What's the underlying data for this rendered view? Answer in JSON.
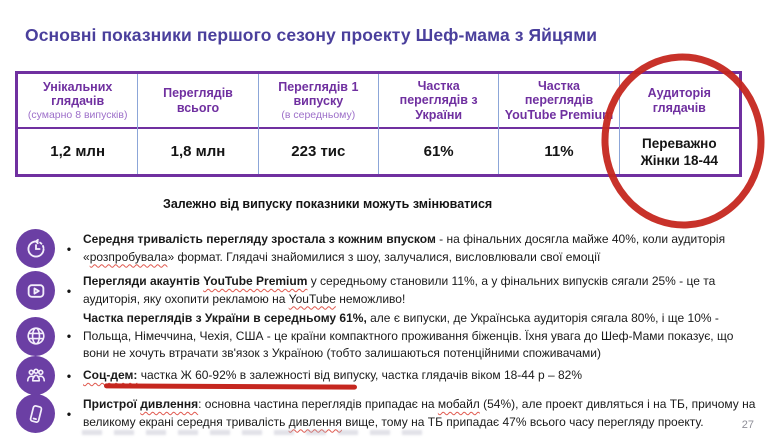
{
  "slide": {
    "title": "Основні показники першого сезону проекту Шеф-мама з Яйцями",
    "note": "Залежно від випуску показники можуть змінюватися",
    "page_number": "27"
  },
  "table": {
    "columns": [
      {
        "header": "Унікальних глядачів",
        "subheader": "(сумарно 8 випусків)",
        "value": "1,2 млн"
      },
      {
        "header": "Переглядів всього",
        "subheader": "",
        "value": "1,8 млн"
      },
      {
        "header": "Переглядів 1 випуску",
        "subheader": "(в середньому)",
        "value": "223 тис"
      },
      {
        "header": "Частка переглядів з України",
        "subheader": "",
        "value": "61%"
      },
      {
        "header": "Частка переглядів YouTube Premium",
        "subheader": "",
        "value": "11%"
      },
      {
        "header": "Аудиторія глядачів",
        "subheader": "",
        "value": "Переважно Жінки 18-44"
      }
    ]
  },
  "bullets": [
    {
      "icon": "clock-icon",
      "segments": [
        {
          "t": "Середня тривалість перегляду зростала з кожним впуском",
          "b": true
        },
        {
          "t": " - на фінальних досягла майже 40%, коли аудиторія «",
          "b": false
        },
        {
          "t": "розпробувала",
          "b": false,
          "w": true
        },
        {
          "t": "» формат. Глядачі знайомилися з шоу, залучалися, висловлювали свої емоції",
          "b": false
        }
      ]
    },
    {
      "icon": "play-icon",
      "segments": [
        {
          "t": "Перегляди акаунтів ",
          "b": true
        },
        {
          "t": "YouTube Premium",
          "b": true,
          "w": true
        },
        {
          "t": " у середньому становили 11%, а у фінальних випусків сягали 25% - це та аудиторія, яку охопити рекламою на ",
          "b": false
        },
        {
          "t": "YouTube",
          "b": false,
          "w": true
        },
        {
          "t": " неможливо!",
          "b": false
        }
      ]
    },
    {
      "icon": "globe-icon",
      "segments": [
        {
          "t": "Частка переглядів з України в середньому 61%,",
          "b": true
        },
        {
          "t": " але є випуски, де Українська аудиторія сягала 80%, і ще 10% - Польща, Німеччина, Чехія, США  - це країни компактного проживання біженців. Їхня увага до Шеф-Мами показує, що вони не хочуть втрачати зв'язок з Україною (тобто залишаються потенційними споживачами)",
          "b": false
        }
      ]
    },
    {
      "icon": "people-icon",
      "segments": [
        {
          "t": "Соц-дем:",
          "b": true,
          "w": true
        },
        {
          "t": " частка Ж 60-92% в залежності від випуску, частка глядачів віком 18-44 р – 82%",
          "b": false
        }
      ]
    },
    {
      "icon": "phone-icon",
      "segments": [
        {
          "t": "Пристрої ",
          "b": true
        },
        {
          "t": "дивлення",
          "b": true,
          "w": true
        },
        {
          "t": ": основна частина переглядів припадає на ",
          "b": false
        },
        {
          "t": "мобайл",
          "b": false,
          "w": true
        },
        {
          "t": " (54%), але проект дивляться і на ТБ, причому на великому екрані середня тривалість ",
          "b": false
        },
        {
          "t": "дивлення",
          "b": false,
          "w": true
        },
        {
          "t": " вище, тому на ТБ припадає 47% всього часу перегляду проекту.",
          "b": false
        }
      ]
    }
  ],
  "bullet_marker": "•",
  "annotations": {
    "red_circle_target": "Аудиторія глядачів",
    "red_underline_target": "частка Ж 60-92% в залежності від випуску"
  },
  "colors": {
    "title": "#4a3f9c",
    "table_header_text": "#7030a0",
    "table_border": "#7030a0",
    "icon_circle": "#6b3fa4",
    "annotation_red": "#c5271f",
    "spellcheck_red": "#e0584e"
  }
}
